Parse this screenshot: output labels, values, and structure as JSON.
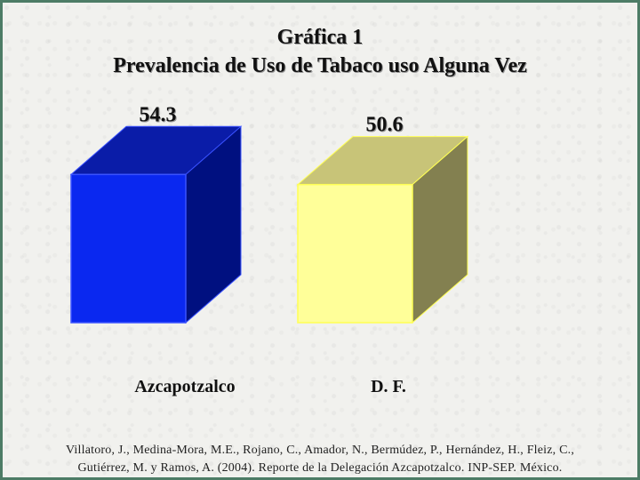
{
  "chart_data": {
    "type": "bar",
    "title": "Gráfica 1",
    "subtitle": "Prevalencia de Uso de Tabaco uso Alguna Vez",
    "categories": [
      "Azcapotzalco",
      "D. F."
    ],
    "values": [
      54.3,
      50.6
    ],
    "value_labels": [
      "54.3",
      "50.6"
    ],
    "colors": [
      {
        "front": "#0a28f0",
        "top": "#0a1ca8",
        "side": "#001080"
      },
      {
        "front": "#ffff99",
        "top": "#c8c478",
        "side": "#838050"
      }
    ],
    "edge_colors": [
      "#3a52ff",
      "#ffff55"
    ],
    "xlabel": "",
    "ylabel": "",
    "ylim": [
      0,
      54.3
    ],
    "grid": false,
    "style": "3d-box"
  },
  "citation": {
    "line1": "Villatoro, J., Medina-Mora, M.E., Rojano, C., Amador, N., Bermúdez, P., Hernández, H., Fleiz, C.,",
    "line2": "Gutiérrez, M. y Ramos, A. (2004). Reporte de la Delegación Azcapotzalco. INP-SEP. México."
  }
}
